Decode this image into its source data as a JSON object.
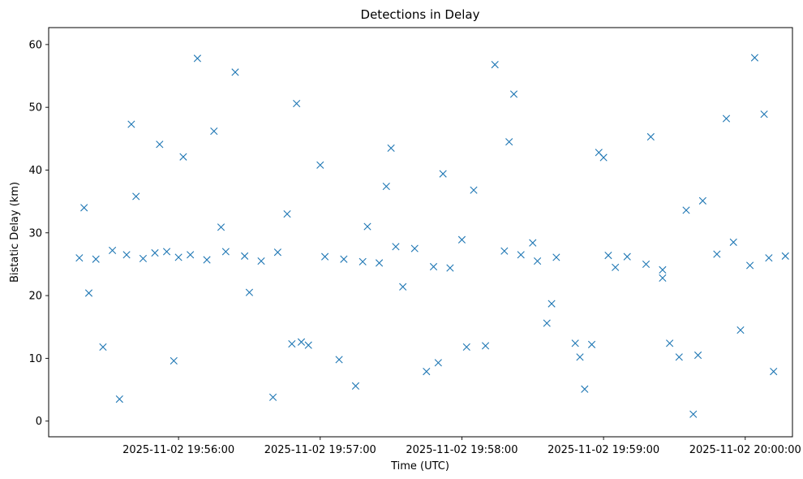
{
  "chart_data": {
    "type": "scatter",
    "title": "Detections in Delay",
    "xlabel": "Time (UTC)",
    "ylabel": "Bistatic Delay (km)",
    "x_tick_labels": [
      "2025-11-02 19:56:00",
      "2025-11-02 19:57:00",
      "2025-11-02 19:58:00",
      "2025-11-02 19:59:00",
      "2025-11-02 20:00:00"
    ],
    "y_ticks": [
      0,
      10,
      20,
      30,
      40,
      50,
      60
    ],
    "xlim": [
      "2025-11-02 19:55:05",
      "2025-11-02 20:00:20"
    ],
    "ylim": [
      -2.5,
      62.7
    ],
    "grid": false,
    "marker": "x",
    "color": "#1f77b4",
    "series": [
      {
        "x": [
          "19:55:18",
          "19:55:25",
          "19:55:32",
          "19:55:38",
          "19:55:45",
          "19:55:50",
          "19:55:55",
          "19:56:00",
          "19:56:05",
          "19:56:12",
          "19:56:20",
          "19:56:28",
          "19:56:35",
          "19:56:42",
          "19:56:48",
          "19:56:55",
          "19:57:02",
          "19:57:10",
          "19:57:18",
          "19:57:25",
          "19:57:32",
          "19:57:40",
          "19:57:48",
          "19:57:55",
          "19:58:02",
          "19:58:10",
          "19:58:18",
          "19:58:25",
          "19:58:32",
          "19:58:40",
          "19:58:48",
          "19:58:55",
          "19:59:02",
          "19:59:10",
          "19:59:18",
          "19:59:25",
          "19:59:32",
          "19:59:40",
          "19:59:48",
          "19:59:55",
          "20:00:02",
          "20:00:10",
          "20:00:17",
          "19:55:20",
          "19:55:40",
          "19:56:02",
          "19:56:24",
          "19:56:46",
          "19:57:08",
          "19:57:30",
          "19:57:52",
          "19:58:14",
          "19:58:36",
          "19:58:58",
          "19:59:20",
          "19:59:42",
          "20:00:04",
          "19:55:28",
          "19:55:58",
          "19:56:30",
          "19:57:00",
          "19:57:35",
          "19:58:05",
          "19:58:38",
          "19:59:05",
          "19:59:35",
          "20:00:08",
          "19:55:35",
          "19:56:08",
          "19:56:40",
          "19:57:15",
          "19:57:45",
          "19:58:20",
          "19:58:50",
          "19:59:25",
          "19:59:52",
          "19:55:22",
          "19:55:52",
          "19:56:18",
          "19:56:50",
          "19:57:20",
          "19:57:50",
          "19:58:22",
          "19:58:52",
          "19:59:28",
          "19:59:58",
          "19:55:42",
          "19:56:15",
          "19:56:52",
          "19:57:28",
          "19:58:00",
          "19:58:30",
          "19:59:00",
          "19:59:38",
          "20:00:12"
        ],
        "y": [
          26.0,
          25.8,
          27.2,
          26.5,
          25.9,
          26.8,
          27.0,
          26.1,
          26.5,
          25.7,
          27.0,
          26.3,
          25.5,
          26.9,
          12.3,
          12.1,
          26.2,
          25.8,
          25.4,
          25.2,
          27.8,
          27.5,
          24.6,
          24.4,
          11.8,
          12.0,
          27.1,
          26.5,
          25.5,
          26.1,
          12.4,
          12.2,
          26.4,
          26.2,
          25.0,
          24.1,
          10.2,
          10.5,
          26.6,
          28.5,
          24.8,
          26.0,
          26.3,
          34.0,
          47.3,
          42.1,
          55.6,
          33.0,
          9.8,
          43.5,
          39.4,
          56.8,
          15.6,
          42.8,
          45.3,
          35.1,
          57.9,
          11.8,
          9.6,
          20.5,
          40.8,
          21.4,
          36.8,
          18.7,
          24.5,
          33.6,
          48.9,
          3.5,
          57.8,
          3.8,
          5.6,
          7.9,
          44.5,
          10.2,
          22.8,
          48.2,
          20.4,
          44.1,
          30.9,
          50.6,
          31.0,
          9.3,
          52.1,
          5.1,
          12.4,
          14.5,
          35.8,
          46.2,
          12.6,
          37.4,
          28.9,
          28.4,
          42.0,
          1.1,
          7.9
        ]
      }
    ]
  }
}
